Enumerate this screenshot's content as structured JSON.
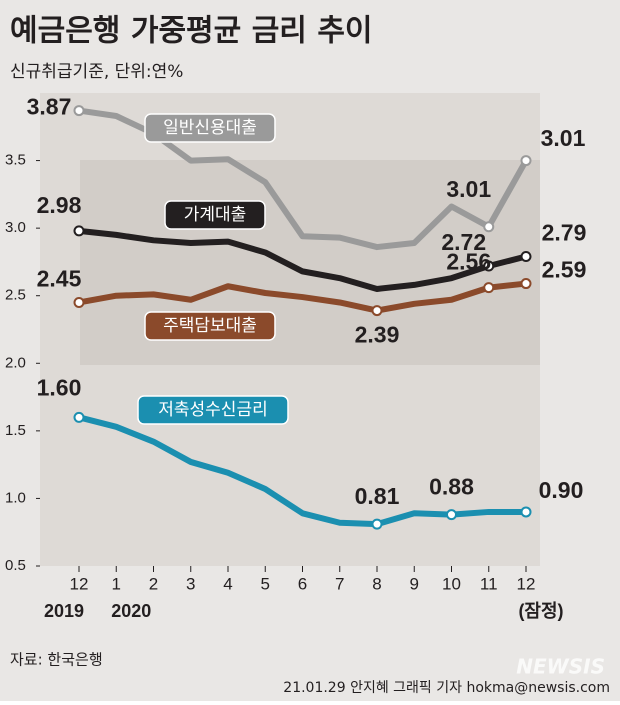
{
  "chart_data": {
    "type": "line",
    "title": "예금은행 가중평균 금리 추이",
    "subtitle": "신규취급기준, 단위:연%",
    "categories": [
      "12",
      "1",
      "2",
      "3",
      "4",
      "5",
      "6",
      "7",
      "8",
      "9",
      "10",
      "11",
      "12"
    ],
    "x_sublabels": [
      "2019",
      "2020",
      null,
      null,
      null,
      null,
      null,
      null,
      null,
      null,
      null,
      null,
      "(잠정)"
    ],
    "ylim": [
      0.5,
      4.0
    ],
    "yticks": [
      0.5,
      {
        "value": 1.0,
        "label": "1.0"
      },
      1.5,
      {
        "value": 2.0,
        "label": "2.0"
      },
      2.5,
      {
        "value": 3.0,
        "label": "3.0"
      },
      3.5
    ],
    "series": [
      {
        "name": "일반신용대출",
        "color": "#9a9a9a",
        "values": [
          3.87,
          3.83,
          3.7,
          3.5,
          3.51,
          3.34,
          2.94,
          2.93,
          2.86,
          2.89,
          3.16,
          3.01,
          3.5
        ],
        "value_labels": [
          "3.87",
          null,
          null,
          null,
          null,
          null,
          null,
          null,
          null,
          null,
          null,
          "3.01",
          null
        ]
      },
      {
        "name": "가계대출",
        "color": "#231f20",
        "values": [
          2.98,
          2.95,
          2.91,
          2.89,
          2.9,
          2.82,
          2.68,
          2.63,
          2.55,
          2.58,
          2.63,
          2.72,
          2.79
        ],
        "value_labels": [
          "2.98",
          null,
          null,
          null,
          null,
          null,
          null,
          null,
          null,
          null,
          null,
          "2.72",
          "2.79"
        ]
      },
      {
        "name": "주택담보대출",
        "color": "#8b4a2b",
        "values": [
          2.45,
          2.5,
          2.51,
          2.47,
          2.57,
          2.52,
          2.49,
          2.45,
          2.39,
          2.44,
          2.47,
          2.56,
          2.59
        ],
        "value_labels": [
          "2.45",
          null,
          null,
          null,
          null,
          null,
          null,
          null,
          "2.39",
          null,
          null,
          "2.56",
          "2.59"
        ]
      },
      {
        "name": "저축성수신금리",
        "color": "#1b8fb0",
        "values": [
          1.6,
          1.53,
          1.42,
          1.27,
          1.19,
          1.07,
          0.89,
          0.82,
          0.81,
          0.89,
          0.88,
          0.9,
          0.9
        ],
        "value_labels": [
          "1.60",
          null,
          null,
          null,
          null,
          null,
          null,
          null,
          "0.81",
          null,
          "0.88",
          null,
          "0.90"
        ]
      }
    ],
    "annotations": [
      "3.01"
    ],
    "source": "자료: 한국은행",
    "credit": "21.01.29 안지혜 그래픽 기자 hokma@newsis.com",
    "watermark": "NEWSIS"
  }
}
